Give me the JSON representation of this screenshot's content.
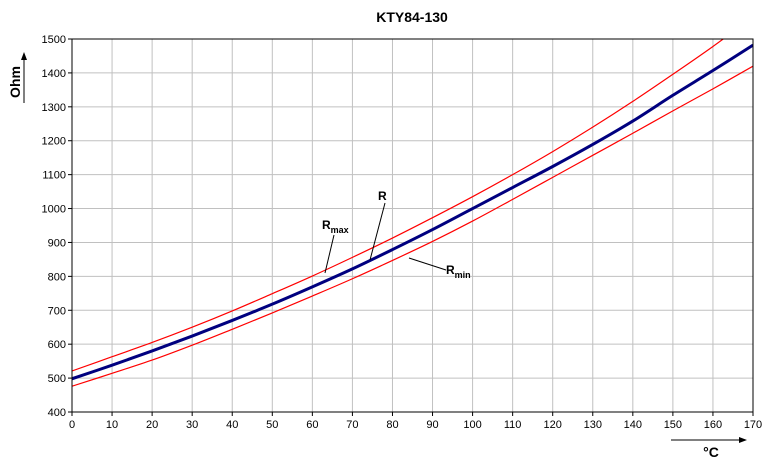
{
  "chart_data": {
    "type": "line",
    "title": "KTY84-130",
    "xlabel": "°C",
    "ylabel": "Ohm",
    "xlim": [
      0,
      170
    ],
    "ylim": [
      400,
      1500
    ],
    "x_ticks": [
      0,
      10,
      20,
      30,
      40,
      50,
      60,
      70,
      80,
      90,
      100,
      110,
      120,
      130,
      140,
      150,
      160,
      170
    ],
    "y_ticks": [
      400,
      500,
      600,
      700,
      800,
      900,
      1000,
      1100,
      1200,
      1300,
      1400,
      1500
    ],
    "grid": true,
    "legend": "none",
    "x": [
      0,
      10,
      20,
      30,
      40,
      50,
      60,
      70,
      80,
      90,
      100,
      110,
      120,
      130,
      140,
      150,
      160,
      170
    ],
    "series": [
      {
        "name": "R",
        "color": "#00007f",
        "values": [
          498,
          538,
          580,
          624,
          670,
          718,
          769,
          822,
          879,
          938,
          1000,
          1062,
          1124,
          1189,
          1258,
          1334,
          1407,
          1482
        ]
      },
      {
        "name": "R_max",
        "color": "#ff0000",
        "values": [
          521,
          563,
          605,
          650,
          698,
          749,
          801,
          856,
          913,
          973,
          1035,
          1100,
          1168,
          1240,
          1316,
          1396,
          1478,
          1565
        ]
      },
      {
        "name": "R_min",
        "color": "#ff0000",
        "values": [
          476,
          514,
          553,
          597,
          644,
          692,
          742,
          793,
          847,
          903,
          963,
          1027,
          1092,
          1157,
          1222,
          1288,
          1353,
          1420
        ]
      }
    ],
    "annotations": [
      {
        "main": "R",
        "sub": ""
      },
      {
        "main": "R",
        "sub": "max"
      },
      {
        "main": "R",
        "sub": "min"
      }
    ]
  }
}
